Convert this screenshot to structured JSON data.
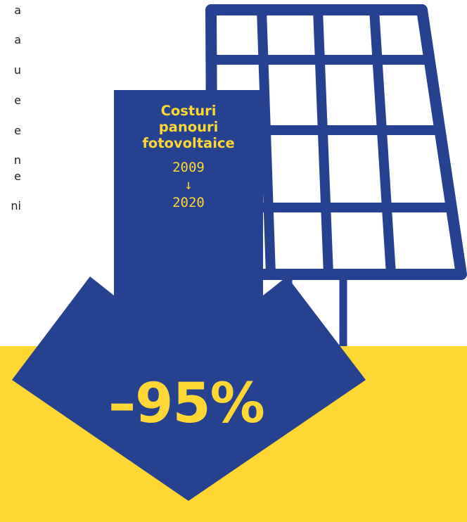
{
  "left_column_letters": [
    "a",
    "a",
    "u",
    "e",
    "e",
    "n",
    "e",
    "ni"
  ],
  "infographic": {
    "title_lines": [
      "Costuri",
      "panouri",
      "fotovoltaice"
    ],
    "year_from": "2009",
    "arrow_glyph": "↓",
    "year_to": "2020",
    "change": "–95%",
    "icon": "solar-panel-icon"
  },
  "colors": {
    "navy": "#26418F",
    "yellow": "#FDD835",
    "white": "#FFFFFF",
    "text": "#222222"
  }
}
